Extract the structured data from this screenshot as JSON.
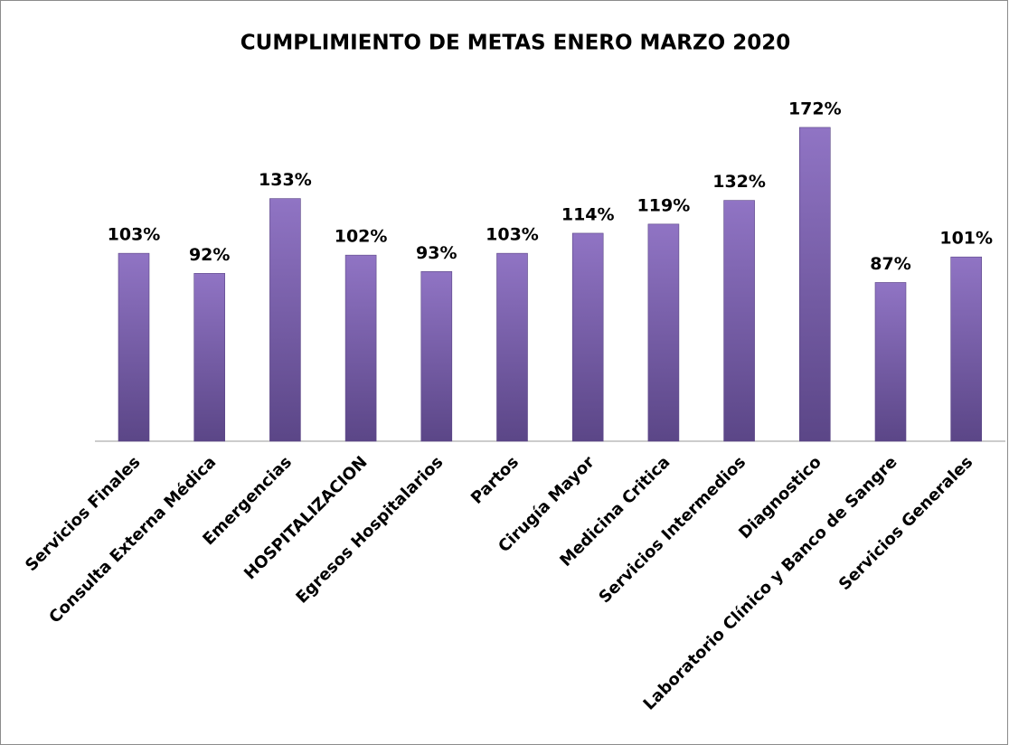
{
  "chart_data": {
    "type": "bar",
    "title": "CUMPLIMIENTO DE METAS ENERO MARZO 2020",
    "categories": [
      "Servicios Finales",
      "Consulta Externa Médica",
      "Emergencias",
      "HOSPITALIZACION",
      "Egresos Hospitalarios",
      "Partos",
      "Cirugía Mayor",
      "Medicina Critica",
      "Servicios Intermedios",
      "Diagnostico",
      "Laboratorio Clínico y Banco de Sangre",
      "Servicios Generales"
    ],
    "values": [
      103,
      92,
      133,
      102,
      93,
      103,
      114,
      119,
      132,
      172,
      87,
      101
    ],
    "value_labels": [
      "103%",
      "92%",
      "133%",
      "102%",
      "93%",
      "103%",
      "114%",
      "119%",
      "132%",
      "172%",
      "87%",
      "101%"
    ],
    "color": "#7a5cb0"
  }
}
